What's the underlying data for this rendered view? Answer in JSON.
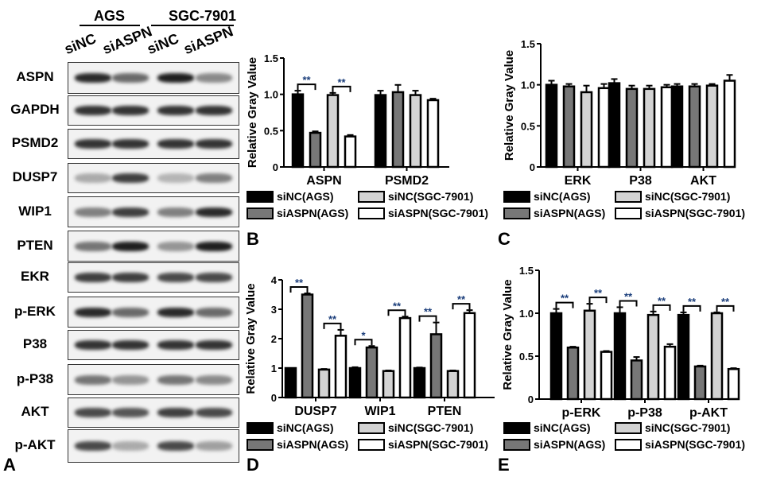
{
  "blot": {
    "cell_lines": [
      "AGS",
      "SGC-7901"
    ],
    "lanes": [
      "siNC",
      "siASPN",
      "siNC",
      "siASPN"
    ],
    "rows": [
      {
        "label": "ASPN",
        "band_intensity": [
          0.9,
          0.6,
          0.95,
          0.45
        ]
      },
      {
        "label": "GAPDH",
        "band_intensity": [
          0.85,
          0.85,
          0.85,
          0.85
        ]
      },
      {
        "label": "PSMD2",
        "band_intensity": [
          0.85,
          0.85,
          0.85,
          0.85
        ]
      },
      {
        "label": "DUSP7",
        "band_intensity": [
          0.3,
          0.8,
          0.25,
          0.5
        ]
      },
      {
        "label": "WIP1",
        "band_intensity": [
          0.5,
          0.8,
          0.5,
          0.9
        ]
      },
      {
        "label": "PTEN",
        "band_intensity": [
          0.55,
          0.95,
          0.4,
          0.95
        ]
      },
      {
        "label": "EKR",
        "band_intensity": [
          0.8,
          0.8,
          0.75,
          0.75
        ]
      },
      {
        "label": "p-ERK",
        "band_intensity": [
          0.9,
          0.6,
          0.9,
          0.6
        ]
      },
      {
        "label": "P38",
        "band_intensity": [
          0.85,
          0.85,
          0.85,
          0.85
        ]
      },
      {
        "label": "p-P38",
        "band_intensity": [
          0.55,
          0.4,
          0.55,
          0.45
        ]
      },
      {
        "label": "AKT",
        "band_intensity": [
          0.75,
          0.7,
          0.8,
          0.75
        ]
      },
      {
        "label": "p-AKT",
        "band_intensity": [
          0.75,
          0.3,
          0.75,
          0.35
        ]
      }
    ]
  },
  "panels": {
    "A": "A",
    "B": "B",
    "C": "C",
    "D": "D",
    "E": "E"
  },
  "legend": {
    "items": [
      "siNC(AGS)",
      "siNC(SGC-7901)",
      "siASPN(AGS)",
      "siASPN(SGC-7901)"
    ],
    "colors": [
      "#000000",
      "#d3d3d3",
      "#777777",
      "#ffffff"
    ]
  },
  "chart_data": [
    {
      "panel": "B",
      "type": "bar",
      "ylabel": "Relative Gray Value",
      "ylim": [
        0,
        1.5
      ],
      "yticks": [
        "0",
        "0.5",
        "1.0",
        "1.5"
      ],
      "categories": [
        "ASPN",
        "PSMD2"
      ],
      "series": [
        {
          "name": "siNC(AGS)",
          "values": [
            1.0,
            0.99
          ],
          "errors": [
            0.05,
            0.06
          ]
        },
        {
          "name": "siASPN(AGS)",
          "values": [
            0.47,
            1.03
          ],
          "errors": [
            0.02,
            0.1
          ]
        },
        {
          "name": "siNC(SGC-7901)",
          "values": [
            0.99,
            0.99
          ],
          "errors": [
            0.03,
            0.06
          ]
        },
        {
          "name": "siASPN(SGC-7901)",
          "values": [
            0.42,
            0.92
          ],
          "errors": [
            0.02,
            0.02
          ]
        }
      ],
      "significance": [
        [
          "**",
          "**"
        ],
        [
          "",
          ""
        ]
      ]
    },
    {
      "panel": "C",
      "type": "bar",
      "ylabel": "Relative Gray Value",
      "ylim": [
        0,
        1.5
      ],
      "yticks": [
        "0",
        "0.5",
        "1.0",
        "1.5"
      ],
      "categories": [
        "ERK",
        "P38",
        "AKT"
      ],
      "series": [
        {
          "name": "siNC(AGS)",
          "values": [
            1.0,
            1.02,
            0.98
          ],
          "errors": [
            0.05,
            0.05,
            0.03
          ]
        },
        {
          "name": "siASPN(AGS)",
          "values": [
            0.98,
            0.95,
            0.98
          ],
          "errors": [
            0.03,
            0.04,
            0.03
          ]
        },
        {
          "name": "siNC(SGC-7901)",
          "values": [
            0.91,
            0.95,
            0.99
          ],
          "errors": [
            0.08,
            0.04,
            0.02
          ]
        },
        {
          "name": "siASPN(SGC-7901)",
          "values": [
            0.96,
            0.97,
            1.05
          ],
          "errors": [
            0.05,
            0.03,
            0.07
          ]
        }
      ],
      "significance": [
        [
          "",
          ""
        ],
        [
          "",
          ""
        ],
        [
          "",
          ""
        ]
      ]
    },
    {
      "panel": "D",
      "type": "bar",
      "ylabel": "Relative Gray Value",
      "ylim": [
        0,
        4
      ],
      "yticks": [
        "0",
        "1",
        "2",
        "3",
        "4"
      ],
      "categories": [
        "DUSP7",
        "WIP1",
        "PTEN"
      ],
      "series": [
        {
          "name": "siNC(AGS)",
          "values": [
            1.0,
            1.0,
            1.0
          ],
          "errors": [
            0.0,
            0.03,
            0.02
          ]
        },
        {
          "name": "siASPN(AGS)",
          "values": [
            3.5,
            1.7,
            2.15
          ],
          "errors": [
            0.04,
            0.05,
            0.4
          ]
        },
        {
          "name": "siNC(SGC-7901)",
          "values": [
            0.95,
            0.9,
            0.9
          ],
          "errors": [
            0.02,
            0.02,
            0.02
          ]
        },
        {
          "name": "siASPN(SGC-7901)",
          "values": [
            2.1,
            2.7,
            2.87
          ],
          "errors": [
            0.2,
            0.05,
            0.1
          ]
        }
      ],
      "significance": [
        [
          "**",
          "**"
        ],
        [
          "*",
          "**"
        ],
        [
          "**",
          "**"
        ]
      ]
    },
    {
      "panel": "E",
      "type": "bar",
      "ylabel": "Relative Gray Value",
      "ylim": [
        0,
        1.5
      ],
      "yticks": [
        "0",
        "0.5",
        "1.0",
        "1.5"
      ],
      "categories": [
        "p-ERK",
        "p-P38",
        "p-AKT"
      ],
      "series": [
        {
          "name": "siNC(AGS)",
          "values": [
            1.0,
            1.0,
            0.98
          ],
          "errors": [
            0.05,
            0.07,
            0.03
          ]
        },
        {
          "name": "siASPN(AGS)",
          "values": [
            0.6,
            0.45,
            0.38
          ],
          "errors": [
            0.01,
            0.04,
            0.01
          ]
        },
        {
          "name": "siNC(SGC-7901)",
          "values": [
            1.03,
            0.98,
            1.0
          ],
          "errors": [
            0.08,
            0.04,
            0.01
          ]
        },
        {
          "name": "siASPN(SGC-7901)",
          "values": [
            0.55,
            0.61,
            0.35
          ],
          "errors": [
            0.01,
            0.03,
            0.01
          ]
        }
      ],
      "significance": [
        [
          "**",
          "**"
        ],
        [
          "**",
          "**"
        ],
        [
          "**",
          "**"
        ]
      ]
    }
  ]
}
